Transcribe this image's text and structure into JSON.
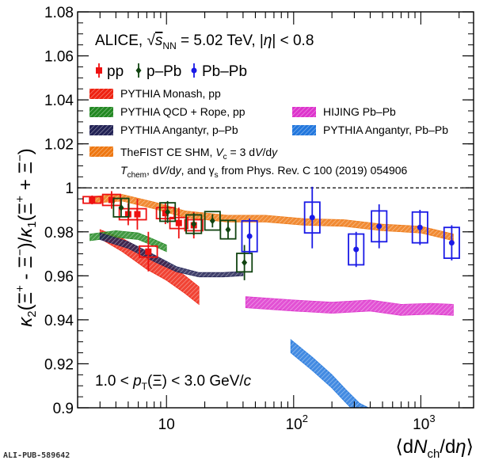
{
  "chart_data": {
    "type": "scatter",
    "title": "ALICE, √s_NN = 5.02 TeV, |η| < 0.8",
    "title_parts": {
      "pre": "ALICE, ",
      "sqrt": "√",
      "s": "s",
      "nn": "NN",
      "post": " = 5.02 TeV, |",
      "eta": "η",
      "post2": "| < 0.8"
    },
    "xlabel": {
      "open": "⟨d",
      "N": "N",
      "sub": "ch",
      "mid": "/d",
      "eta": "η",
      "close": "⟩"
    },
    "ylabel": "κ2(Ξ⁺ − Ξ̄⁻)/κ1(Ξ⁺ + Ξ̄⁻)",
    "ylabel_parts": {
      "k": "κ",
      "two": "2",
      "one": "1",
      "xi": "Ξ",
      "plus": "+",
      "minus": "−",
      "lp": "(",
      "rp": ")",
      "mid": " - ",
      "slash": "/",
      "sum": " + "
    },
    "x_scale": "log",
    "xlim": [
      2,
      2600
    ],
    "ylim": [
      0.9,
      1.08
    ],
    "x_ticks": [
      {
        "v": 10,
        "label": "10",
        "sup": ""
      },
      {
        "v": 100,
        "label": "10",
        "sup": "2"
      },
      {
        "v": 1000,
        "label": "10",
        "sup": "3"
      }
    ],
    "y_ticks": [
      {
        "v": 0.9,
        "label": "0.9"
      },
      {
        "v": 0.92,
        "label": "0.92"
      },
      {
        "v": 0.94,
        "label": "0.94"
      },
      {
        "v": 0.96,
        "label": "0.96"
      },
      {
        "v": 0.98,
        "label": "0.98"
      },
      {
        "v": 1.0,
        "label": "1"
      },
      {
        "v": 1.02,
        "label": "1.02"
      },
      {
        "v": 1.04,
        "label": "1.04"
      },
      {
        "v": 1.06,
        "label": "1.06"
      },
      {
        "v": 1.08,
        "label": "1.08"
      }
    ],
    "reference_line": 1.0,
    "annotation_kinematics": {
      "pre": "1.0 < ",
      "p": "p",
      "T": "T",
      "mid": "(Ξ) < 3.0 GeV/",
      "c": "c"
    },
    "data_series": [
      {
        "name": "pp",
        "color": "#ee1111",
        "marker": "square",
        "points": [
          {
            "x": 2.6,
            "y": 0.9945,
            "err": 0.002,
            "sx": 0.07,
            "sy": 0.0015
          },
          {
            "x": 3.7,
            "y": 0.9945,
            "err": 0.004,
            "sx": 0.07,
            "sy": 0.0025
          },
          {
            "x": 5.0,
            "y": 0.988,
            "err": 0.005,
            "sx": 0.07,
            "sy": 0.0025
          },
          {
            "x": 5.9,
            "y": 0.988,
            "err": 0.007,
            "sx": 0.07,
            "sy": 0.0025
          },
          {
            "x": 7.2,
            "y": 0.971,
            "err": 0.009,
            "sx": 0.07,
            "sy": 0.0025
          },
          {
            "x": 9.8,
            "y": 0.9885,
            "err": 0.005,
            "sx": 0.07,
            "sy": 0.0025
          },
          {
            "x": 12.5,
            "y": 0.984,
            "err": 0.007,
            "sx": 0.07,
            "sy": 0.0025
          },
          {
            "x": 16.4,
            "y": 0.983,
            "err": 0.006,
            "sx": 0.07,
            "sy": 0.0025
          }
        ]
      },
      {
        "name": "p–Pb",
        "color": "#114411",
        "marker": "diamond",
        "points": [
          {
            "x": 4.4,
            "y": 0.991,
            "err": 0.004,
            "sx": 0.06,
            "sy": 0.0042
          },
          {
            "x": 10.2,
            "y": 0.989,
            "err": 0.005,
            "sx": 0.06,
            "sy": 0.0042
          },
          {
            "x": 16.4,
            "y": 0.9835,
            "err": 0.005,
            "sx": 0.06,
            "sy": 0.0042
          },
          {
            "x": 23.0,
            "y": 0.985,
            "err": 0.003,
            "sx": 0.06,
            "sy": 0.0042
          },
          {
            "x": 30.5,
            "y": 0.981,
            "err": 0.004,
            "sx": 0.06,
            "sy": 0.0042
          },
          {
            "x": 41.0,
            "y": 0.966,
            "err": 0.008,
            "sx": 0.06,
            "sy": 0.0042
          }
        ]
      },
      {
        "name": "Pb–Pb",
        "color": "#1a1ae6",
        "marker": "circle",
        "points": [
          {
            "x": 45,
            "y": 0.978,
            "err": 0.008,
            "sx": 0.06,
            "sy": 0.007
          },
          {
            "x": 140,
            "y": 0.9865,
            "err": 0.014,
            "sx": 0.06,
            "sy": 0.007
          },
          {
            "x": 310,
            "y": 0.972,
            "err": 0.008,
            "sx": 0.06,
            "sy": 0.007
          },
          {
            "x": 470,
            "y": 0.9825,
            "err": 0.01,
            "sx": 0.06,
            "sy": 0.007
          },
          {
            "x": 985,
            "y": 0.982,
            "err": 0.008,
            "sx": 0.06,
            "sy": 0.007
          },
          {
            "x": 1750,
            "y": 0.975,
            "err": 0.008,
            "sx": 0.06,
            "sy": 0.007
          }
        ]
      }
    ],
    "model_bands": [
      {
        "name": "PYTHIA Monash, pp",
        "color": "#ee2211",
        "points": [
          [
            3.0,
            0.979,
            0.002
          ],
          [
            4.5,
            0.974,
            0.003
          ],
          [
            7.0,
            0.967,
            0.004
          ],
          [
            10.0,
            0.962,
            0.004
          ],
          [
            14.0,
            0.956,
            0.004
          ],
          [
            18.0,
            0.951,
            0.004
          ]
        ]
      },
      {
        "name": "PYTHIA QCD + Rope, pp",
        "color": "#228822",
        "points": [
          [
            2.5,
            0.9775,
            0.0015
          ],
          [
            4.0,
            0.979,
            0.0015
          ],
          [
            6.0,
            0.978,
            0.0015
          ],
          [
            8.0,
            0.975,
            0.0015
          ],
          [
            10.0,
            0.9725,
            0.0015
          ]
        ]
      },
      {
        "name": "PYTHIA Angantyr, p–Pb",
        "color": "#222255",
        "points": [
          [
            3.0,
            0.978,
            0.0015
          ],
          [
            5.0,
            0.974,
            0.0015
          ],
          [
            8.0,
            0.968,
            0.0015
          ],
          [
            12.0,
            0.963,
            0.0012
          ],
          [
            18.0,
            0.9605,
            0.001
          ],
          [
            28.0,
            0.9605,
            0.001
          ],
          [
            40.0,
            0.961,
            0.001
          ]
        ]
      },
      {
        "name": "TheFIST CE SHM",
        "color": "#ee7711",
        "points": [
          [
            2.5,
            0.9945,
            0.0015
          ],
          [
            4.5,
            0.9955,
            0.0015
          ],
          [
            8.0,
            0.992,
            0.0015
          ],
          [
            14.0,
            0.988,
            0.0015
          ],
          [
            30.0,
            0.986,
            0.0015
          ],
          [
            60.0,
            0.986,
            0.0015
          ],
          [
            120.0,
            0.9845,
            0.0015
          ],
          [
            250.0,
            0.984,
            0.0015
          ],
          [
            500.0,
            0.982,
            0.0015
          ],
          [
            1000.0,
            0.981,
            0.0015
          ],
          [
            1800.0,
            0.9775,
            0.0015
          ]
        ]
      },
      {
        "name": "HIJING Pb–Pb",
        "color": "#dd33cc",
        "points": [
          [
            42.0,
            0.948,
            0.0025
          ],
          [
            100.0,
            0.9465,
            0.0025
          ],
          [
            200.0,
            0.9455,
            0.0025
          ],
          [
            400.0,
            0.9465,
            0.0025
          ],
          [
            700.0,
            0.9445,
            0.0025
          ],
          [
            1200.0,
            0.945,
            0.0025
          ],
          [
            1800.0,
            0.9445,
            0.0025
          ]
        ]
      },
      {
        "name": "PYTHIA Angantyr, Pb–Pb",
        "color": "#2277dd",
        "points": [
          [
            95.0,
            0.928,
            0.003
          ],
          [
            140.0,
            0.92,
            0.003
          ],
          [
            200.0,
            0.912,
            0.003
          ],
          [
            260.0,
            0.905,
            0.003
          ],
          [
            330.0,
            0.899,
            0.003
          ],
          [
            420.0,
            0.896,
            0.003
          ]
        ]
      }
    ],
    "legend_data": [
      {
        "label": "pp",
        "color": "#ee1111",
        "marker": "square"
      },
      {
        "label": "p–Pb",
        "color": "#114411",
        "marker": "diamond"
      },
      {
        "label": "Pb–Pb",
        "color": "#1a1ae6",
        "marker": "circle"
      }
    ],
    "legend_models": [
      {
        "label": "PYTHIA Monash, pp",
        "color": "#ee2211"
      },
      {
        "label": "PYTHIA QCD + Rope, pp",
        "color": "#228822"
      },
      {
        "label": "PYTHIA Angantyr, p–Pb",
        "color": "#222255"
      },
      {
        "label": "HIJING Pb–Pb",
        "color": "#dd33cc"
      },
      {
        "label": "PYTHIA Angantyr, Pb–Pb",
        "color": "#2277dd"
      }
    ],
    "legend_fist": {
      "label_pre": "TheFIST CE SHM, ",
      "V": "V",
      "c": "c",
      "label_post": " = 3 d",
      "V2": "V",
      "slash": "/d",
      "y": "y",
      "color": "#ee7711"
    },
    "legend_fist_note": {
      "T": "T",
      "chem": "chem",
      "pre": ", d",
      "V": "V",
      "mid": "/d",
      "y": "y",
      "post": ", and γ",
      "s": "s",
      "tail": " from Phys. Rev. C 100 (2019) 054906"
    }
  },
  "publication_id": "ALI-PUB-589642"
}
